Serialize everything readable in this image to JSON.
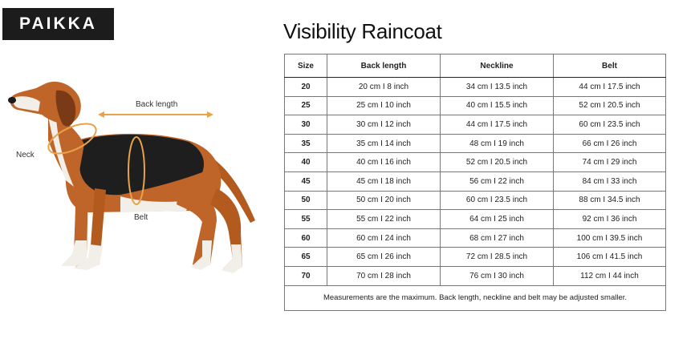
{
  "brand": {
    "logo_text": "PAIKKA"
  },
  "title": "Visibility Raincoat",
  "illustration": {
    "back_length_label": "Back length",
    "neck_label": "Neck",
    "belt_label": "Belt",
    "accent_color": "#e8a24a"
  },
  "table": {
    "headers": {
      "size": "Size",
      "back_length": "Back length",
      "neckline": "Neckline",
      "belt": "Belt"
    },
    "rows": [
      {
        "size": "20",
        "back_length": "20 cm I 8 inch",
        "neckline": "34 cm I 13.5 inch",
        "belt": "44 cm I 17.5 inch"
      },
      {
        "size": "25",
        "back_length": "25 cm I 10 inch",
        "neckline": "40 cm I 15.5 inch",
        "belt": "52 cm I 20.5 inch"
      },
      {
        "size": "30",
        "back_length": "30 cm I 12 inch",
        "neckline": "44 cm I 17.5 inch",
        "belt": "60 cm I 23.5 inch"
      },
      {
        "size": "35",
        "back_length": "35 cm I 14 inch",
        "neckline": "48 cm I 19 inch",
        "belt": "66 cm I 26 inch"
      },
      {
        "size": "40",
        "back_length": "40 cm I 16 inch",
        "neckline": "52 cm I 20.5 inch",
        "belt": "74 cm I 29 inch"
      },
      {
        "size": "45",
        "back_length": "45 cm I 18 inch",
        "neckline": "56 cm I 22 inch",
        "belt": "84 cm I 33 inch"
      },
      {
        "size": "50",
        "back_length": "50 cm I 20 inch",
        "neckline": "60 cm I 23.5 inch",
        "belt": "88 cm I 34.5 inch"
      },
      {
        "size": "55",
        "back_length": "55 cm I 22 inch",
        "neckline": "64 cm I 25 inch",
        "belt": "92 cm I 36 inch"
      },
      {
        "size": "60",
        "back_length": "60 cm I 24 inch",
        "neckline": "68 cm I 27 inch",
        "belt": "100 cm I 39.5 inch"
      },
      {
        "size": "65",
        "back_length": "65 cm I 26 inch",
        "neckline": "72 cm I 28.5 inch",
        "belt": "106 cm I 41.5 inch"
      },
      {
        "size": "70",
        "back_length": "70 cm I 28 inch",
        "neckline": "76 cm I 30 inch",
        "belt": "112 cm I 44 inch"
      }
    ],
    "note": "Measurements are the maximum. Back length, neckline and belt may be adjusted smaller."
  }
}
